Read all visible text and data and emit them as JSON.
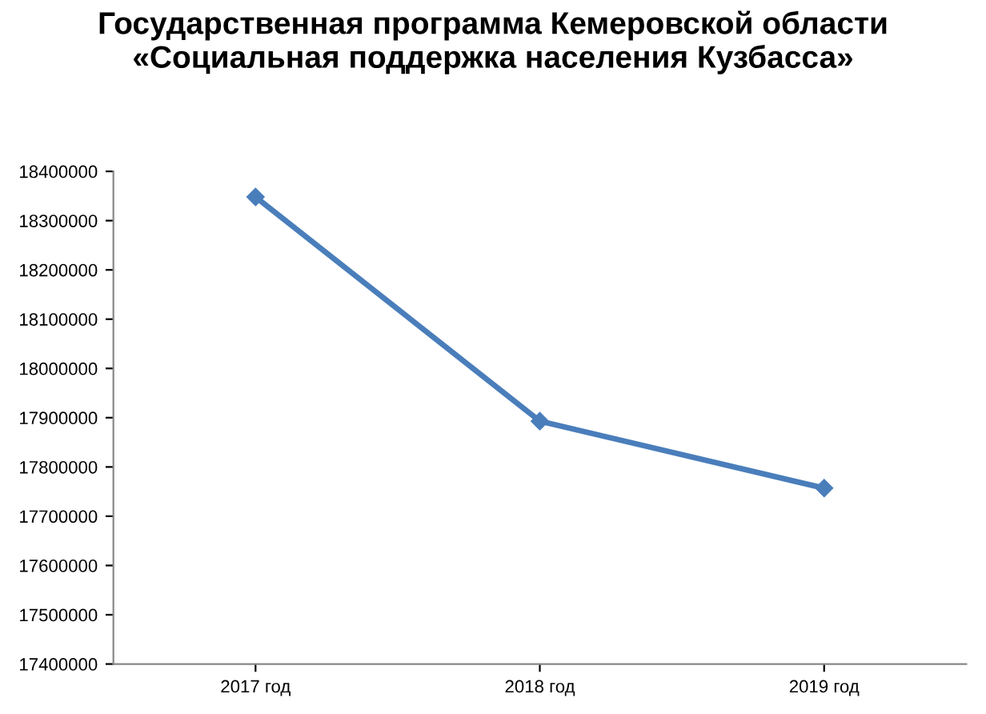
{
  "chart_data": {
    "type": "line",
    "title": "Государственная программа Кемеровской области «Социальная поддержка населения Кузбасса»",
    "categories": [
      "2017 год",
      "2018 год",
      "2019 год"
    ],
    "series": [
      {
        "color": "#4a7ebb",
        "values": [
          18348000,
          17893000,
          17757000
        ]
      }
    ],
    "ylim": [
      17400000,
      18400000
    ],
    "yticks": [
      17400000,
      17500000,
      17600000,
      17700000,
      17800000,
      17900000,
      18000000,
      18100000,
      18200000,
      18300000,
      18400000
    ],
    "grid": false,
    "marker": "diamond",
    "line_style": "solid"
  }
}
